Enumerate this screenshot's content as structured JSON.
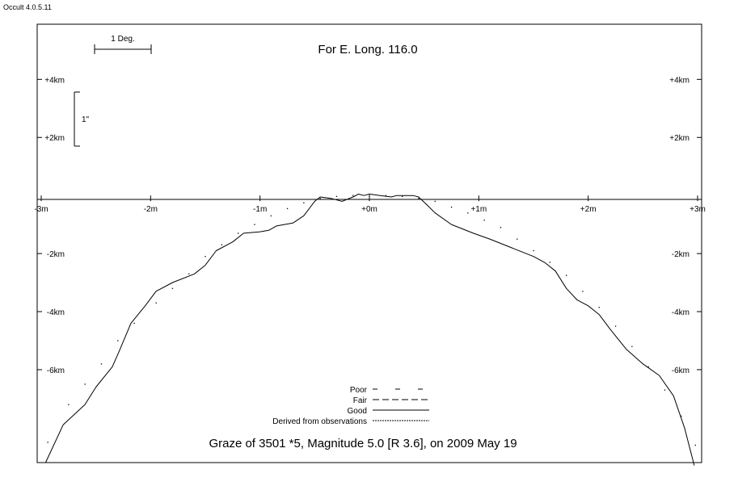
{
  "app": {
    "version": "Occult 4.0.5.11"
  },
  "chart_data": {
    "type": "line",
    "title": "Graze of  3501 *5,  Magnitude 5.0 [R 3.6],  on 2009 May 19",
    "subtitle": "For E. Long. 116.0",
    "x_ticks": [
      {
        "value": -3,
        "label": "-3m"
      },
      {
        "value": -2,
        "label": "-2m"
      },
      {
        "value": -1,
        "label": "-1m"
      },
      {
        "value": 0,
        "label": "+0m"
      },
      {
        "value": 1,
        "label": "+1m"
      },
      {
        "value": 2,
        "label": "+2m"
      },
      {
        "value": 3,
        "label": "+3m"
      }
    ],
    "y_ticks": [
      {
        "value": 4,
        "label": "+4km"
      },
      {
        "value": 2,
        "label": "+2km"
      },
      {
        "value": -2,
        "label": "-2km"
      },
      {
        "value": -4,
        "label": "-4km"
      },
      {
        "value": -6,
        "label": "-6km"
      }
    ],
    "xlim": [
      -3.0,
      3.0
    ],
    "ylim": [
      -9.2,
      5.9
    ],
    "scale_bars": {
      "horizontal": "1 Deg.",
      "vertical": "1\""
    },
    "legend": {
      "placement": "bottom-center",
      "entries": [
        {
          "label": "Poor",
          "style": "poor"
        },
        {
          "label": "Fair",
          "style": "fair"
        },
        {
          "label": "Good",
          "style": "good"
        },
        {
          "label": "Derived from observations",
          "style": "derived"
        }
      ]
    },
    "series": [
      {
        "style": "good",
        "points": [
          [
            -2.96,
            -9.2
          ],
          [
            -2.8,
            -7.9
          ],
          [
            -2.6,
            -7.2
          ],
          [
            -2.5,
            -6.6
          ],
          [
            -2.35,
            -5.9
          ],
          [
            -2.28,
            -5.3
          ],
          [
            -2.18,
            -4.4
          ],
          [
            -2.05,
            -3.8
          ],
          [
            -1.95,
            -3.3
          ],
          [
            -1.8,
            -3.0
          ],
          [
            -1.6,
            -2.7
          ],
          [
            -1.5,
            -2.4
          ],
          [
            -1.4,
            -1.9
          ],
          [
            -1.25,
            -1.6
          ],
          [
            -1.15,
            -1.3
          ],
          [
            -1.0,
            -1.25
          ],
          [
            -0.92,
            -1.2
          ],
          [
            -0.85,
            -1.05
          ],
          [
            -0.7,
            -0.95
          ],
          [
            -0.6,
            -0.7
          ],
          [
            -0.5,
            -0.2
          ],
          [
            -0.45,
            -0.05
          ],
          [
            -0.35,
            -0.1
          ],
          [
            -0.25,
            -0.2
          ],
          [
            -0.15,
            -0.05
          ],
          [
            -0.1,
            0.05
          ],
          [
            -0.05,
            0.0
          ],
          [
            0.0,
            0.05
          ],
          [
            0.1,
            0.0
          ],
          [
            0.2,
            -0.05
          ],
          [
            0.25,
            0.0
          ],
          [
            0.4,
            0.0
          ],
          [
            0.45,
            -0.05
          ],
          [
            0.52,
            -0.3
          ],
          [
            0.6,
            -0.6
          ],
          [
            0.75,
            -1.0
          ],
          [
            0.95,
            -1.3
          ],
          [
            1.1,
            -1.5
          ],
          [
            1.3,
            -1.8
          ],
          [
            1.5,
            -2.1
          ],
          [
            1.6,
            -2.3
          ],
          [
            1.7,
            -2.6
          ],
          [
            1.8,
            -3.2
          ],
          [
            1.9,
            -3.6
          ],
          [
            2.0,
            -3.8
          ],
          [
            2.1,
            -4.1
          ],
          [
            2.2,
            -4.6
          ],
          [
            2.35,
            -5.3
          ],
          [
            2.5,
            -5.8
          ],
          [
            2.65,
            -6.2
          ],
          [
            2.78,
            -6.9
          ],
          [
            2.88,
            -8.0
          ],
          [
            2.97,
            -9.3
          ]
        ]
      },
      {
        "style": "derived",
        "points": [
          [
            -2.94,
            -8.5
          ],
          [
            -2.75,
            -7.2
          ],
          [
            -2.6,
            -6.5
          ],
          [
            -2.45,
            -5.8
          ],
          [
            -2.3,
            -5.0
          ],
          [
            -2.15,
            -4.4
          ],
          [
            -1.95,
            -3.7
          ],
          [
            -1.8,
            -3.2
          ],
          [
            -1.65,
            -2.7
          ],
          [
            -1.5,
            -2.1
          ],
          [
            -1.35,
            -1.7
          ],
          [
            -1.2,
            -1.3
          ],
          [
            -1.05,
            -1.0
          ],
          [
            -0.9,
            -0.7
          ],
          [
            -0.75,
            -0.45
          ],
          [
            -0.6,
            -0.25
          ],
          [
            -0.45,
            -0.1
          ],
          [
            -0.3,
            -0.03
          ],
          [
            -0.15,
            0.0
          ],
          [
            0.0,
            0.0
          ],
          [
            0.15,
            0.0
          ],
          [
            0.3,
            -0.03
          ],
          [
            0.45,
            -0.1
          ],
          [
            0.6,
            -0.2
          ],
          [
            0.75,
            -0.4
          ],
          [
            0.9,
            -0.6
          ],
          [
            1.05,
            -0.85
          ],
          [
            1.2,
            -1.1
          ],
          [
            1.35,
            -1.5
          ],
          [
            1.5,
            -1.9
          ],
          [
            1.65,
            -2.3
          ],
          [
            1.8,
            -2.75
          ],
          [
            1.95,
            -3.3
          ],
          [
            2.1,
            -3.85
          ],
          [
            2.25,
            -4.5
          ],
          [
            2.4,
            -5.2
          ],
          [
            2.55,
            -5.9
          ],
          [
            2.7,
            -6.7
          ],
          [
            2.85,
            -7.6
          ],
          [
            2.98,
            -8.6
          ]
        ]
      }
    ]
  }
}
